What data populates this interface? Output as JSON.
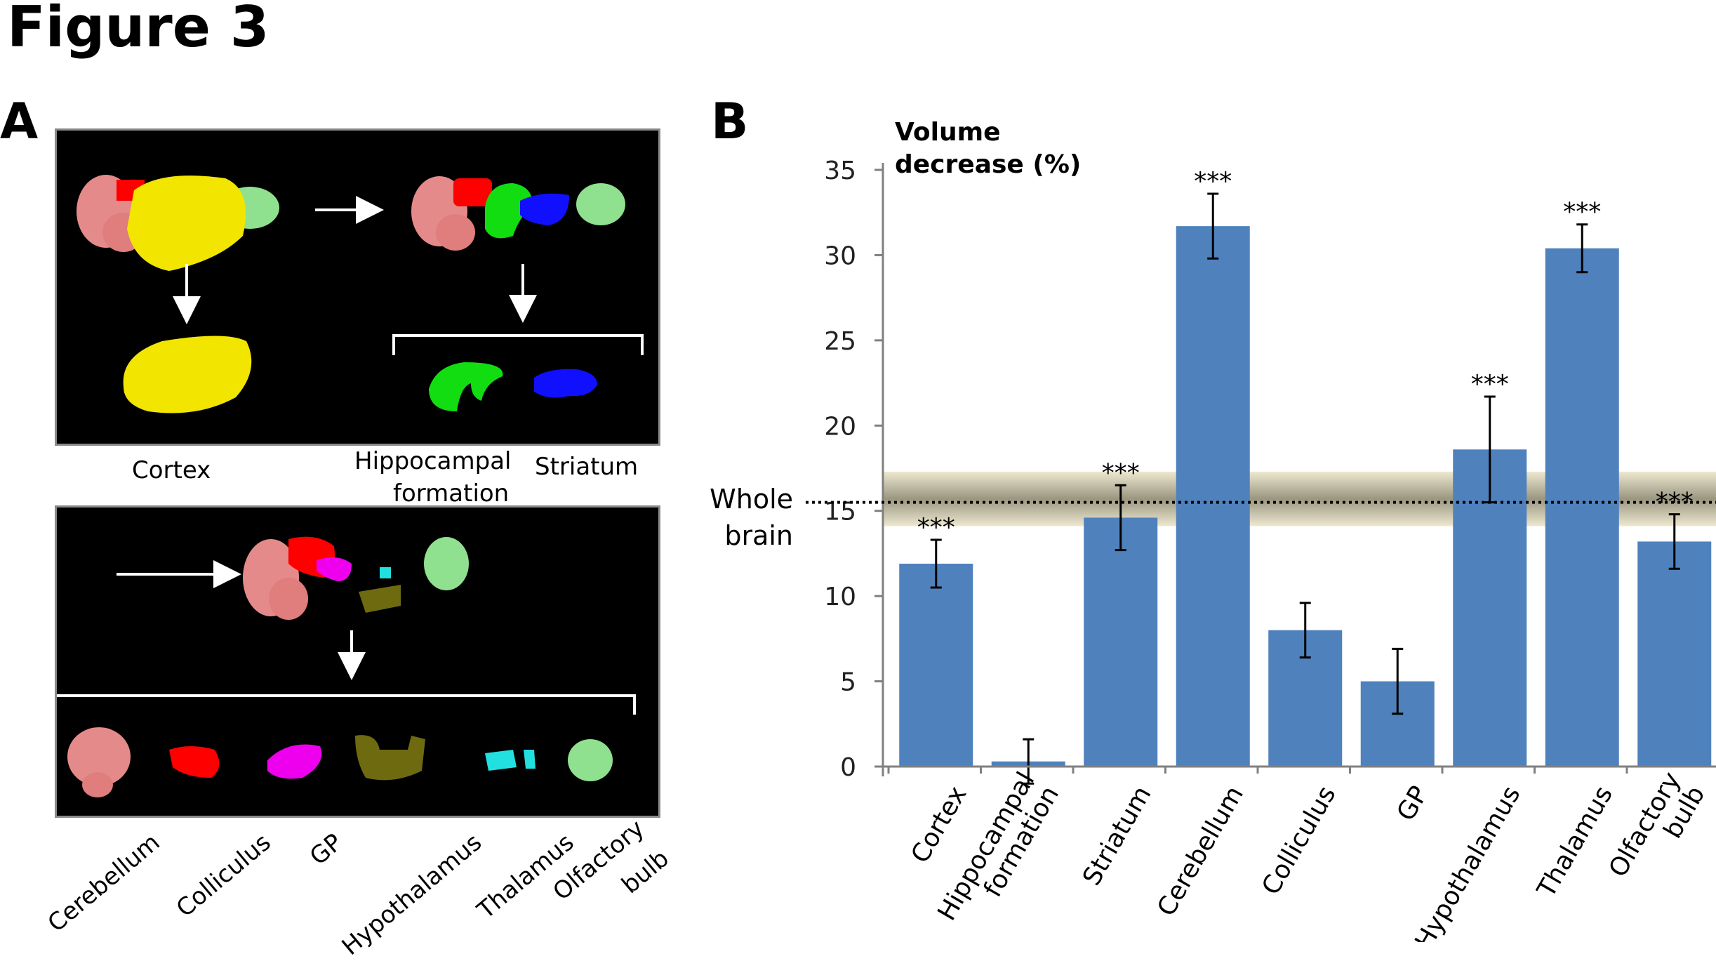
{
  "figure": {
    "title": "Figure 3",
    "panel_a_label": "A",
    "panel_b_label": "B"
  },
  "panel_a": {
    "top_labels": [
      "Cortex",
      "Hippocampal",
      "formation",
      "Striatum"
    ],
    "bottom_labels": [
      "Cerebellum",
      "Colliculus",
      "GP",
      "Hypothalamus",
      "Thalamus",
      "Olfactory",
      "bulb"
    ],
    "colors": {
      "cerebellum": "#e58a8a",
      "colliculus": "#ff0000",
      "cortex": "#f2e600",
      "hippocampus": "#11dd11",
      "striatum": "#1010ff",
      "gp": "#ee00ee",
      "hypothalamus": "#6e6a10",
      "thalamus": "#22e0e0",
      "olfactory": "#8fe08f"
    }
  },
  "chart_data": {
    "type": "bar",
    "title": "Volume decrease (%)",
    "title_lines": [
      "Volume",
      "decrease (%)"
    ],
    "categories": [
      "Cortex",
      "Hippocampal formation",
      "Striatum",
      "Cerebellum",
      "Colliculus",
      "GP",
      "Hypothalamus",
      "Thalamus",
      "Olfactory bulb"
    ],
    "category_lines": [
      [
        "Cortex"
      ],
      [
        "Hippocampal",
        "formation"
      ],
      [
        "Striatum"
      ],
      [
        "Cerebellum"
      ],
      [
        "Colliculus"
      ],
      [
        "GP"
      ],
      [
        "Hypothalamus"
      ],
      [
        "Thalamus"
      ],
      [
        "Olfactory",
        "bulb"
      ]
    ],
    "values": [
      11.9,
      0.3,
      14.6,
      31.7,
      8.0,
      5.0,
      18.6,
      30.4,
      13.2
    ],
    "errors": [
      1.4,
      1.3,
      1.9,
      1.9,
      1.6,
      1.9,
      3.1,
      1.4,
      1.6
    ],
    "significance": [
      "***",
      "",
      "***",
      "***",
      "",
      "",
      "***",
      "***",
      "***"
    ],
    "ylim": [
      0,
      35
    ],
    "yticks": [
      0,
      5,
      10,
      15,
      20,
      25,
      30,
      35
    ],
    "bar_color": "#4f81bd",
    "reference": {
      "label_lines": [
        "Whole",
        "brain"
      ],
      "value": 15.5,
      "band": [
        14.1,
        17.3
      ]
    }
  }
}
